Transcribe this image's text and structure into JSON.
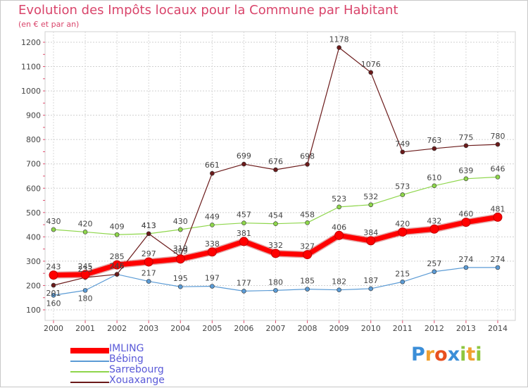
{
  "chart_data": {
    "type": "line",
    "title": "Evolution des Impôts locaux pour la Commune par Habitant",
    "subtitle": "(en € et par an)",
    "x": [
      "2000",
      "2001",
      "2002",
      "2003",
      "2004",
      "2005",
      "2006",
      "2007",
      "2008",
      "2009",
      "2010",
      "2011",
      "2012",
      "2013",
      "2014"
    ],
    "ylim": [
      100,
      1200
    ],
    "yticks": [
      100,
      200,
      300,
      400,
      500,
      600,
      700,
      800,
      900,
      1000,
      1100,
      1200
    ],
    "grid": true,
    "series": [
      {
        "name": "IMLING",
        "color": "#ff0000",
        "values": [
          243,
          245,
          285,
          297,
          309,
          338,
          381,
          332,
          327,
          406,
          384,
          420,
          432,
          460,
          481
        ]
      },
      {
        "name": "Bébing",
        "color": "#5b9bd5",
        "values": [
          160,
          180,
          246,
          217,
          195,
          197,
          177,
          180,
          185,
          182,
          187,
          215,
          257,
          274,
          274
        ]
      },
      {
        "name": "Sarrebourg",
        "color": "#8ed64b",
        "values": [
          430,
          420,
          409,
          413,
          430,
          449,
          457,
          454,
          458,
          523,
          532,
          573,
          610,
          639,
          646
        ]
      },
      {
        "name": "Xouaxange",
        "color": "#6b1a1a",
        "values": [
          201,
          233,
          246,
          413,
          319,
          661,
          699,
          676,
          698,
          1178,
          1076,
          749,
          763,
          775,
          780
        ]
      }
    ]
  },
  "logo": {
    "letters": [
      "P",
      "r",
      "o",
      "x",
      "i",
      "t",
      "i"
    ],
    "colors": [
      "#3b8ed8",
      "#f0a030",
      "#e85020",
      "#3b8ed8",
      "#8ec63f",
      "#f0a030",
      "#8ec63f"
    ]
  }
}
